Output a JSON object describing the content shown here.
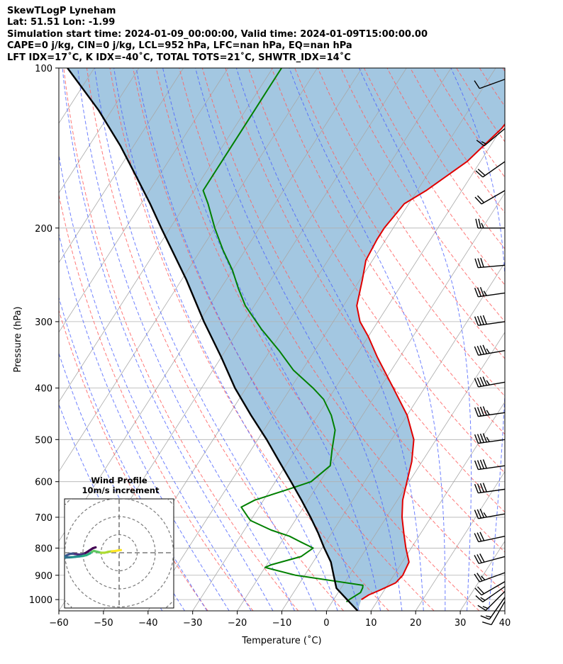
{
  "header": {
    "title": "SkewTLogP Lyneham",
    "location": "Lat: 51.51   Lon: -1.99",
    "times": "Simulation start time: 2024-01-09_00:00:00, Valid time: 2024-01-09T15:00:00.00",
    "indices1": "CAPE=0 j/kg, CIN=0 j/kg, LCL=952 hPa, LFC=nan hPa, EQ=nan hPa",
    "indices2": "LFT IDX=17˚C, K IDX=-40˚C, TOTAL TOTS=21˚C, SHWTR_IDX=14˚C"
  },
  "chart_data": {
    "type": "line",
    "title": "SkewTLogP Lyneham",
    "xlabel": "Temperature (˚C)",
    "ylabel": "Pressure (hPa)",
    "xlim": [
      -60,
      40
    ],
    "ylim": [
      1050,
      100
    ],
    "y_scale": "log",
    "x_ticks": [
      -60,
      -50,
      -40,
      -30,
      -20,
      -10,
      0,
      10,
      20,
      30,
      40
    ],
    "y_ticks": [
      100,
      200,
      300,
      400,
      500,
      600,
      700,
      800,
      900,
      1000
    ],
    "grid": true,
    "colors": {
      "temperature": "#e00000",
      "dewpoint": "#008000",
      "parcel": "#000000",
      "fill": "#7fb2d5",
      "dry_adiabat": "#ff6060",
      "moist_adiabat": "#4a60ff",
      "isotherm": "#a8a8a8"
    },
    "series": [
      {
        "key": "temperature",
        "pressure": [
          1000,
          980,
          960,
          930,
          900,
          850,
          800,
          750,
          700,
          650,
          600,
          550,
          500,
          450,
          400,
          350,
          320,
          300,
          280,
          250,
          230,
          210,
          200,
          180,
          170,
          150,
          130,
          115,
          105,
          100
        ],
        "values": [
          6.2,
          7.2,
          9.0,
          11.5,
          12.0,
          11.5,
          8.8,
          6.2,
          3.5,
          1.2,
          -0.5,
          -2.3,
          -5.0,
          -10.0,
          -17.0,
          -25.0,
          -30.0,
          -34.0,
          -37.0,
          -39.5,
          -41.5,
          -42.0,
          -42.0,
          -41.0,
          -38.0,
          -33.0,
          -30.0,
          -29.0,
          -28.5,
          -28.0
        ]
      },
      {
        "key": "dewpoint",
        "pressure": [
          1010,
          1000,
          990,
          970,
          950,
          940,
          900,
          870,
          860,
          830,
          800,
          780,
          760,
          740,
          710,
          700,
          670,
          650,
          620,
          600,
          560,
          520,
          480,
          450,
          420,
          400,
          370,
          340,
          310,
          280,
          260,
          240,
          220,
          200,
          180,
          170,
          160,
          140,
          120,
          110,
          100
        ],
        "values": [
          3.2,
          3.5,
          4.0,
          5.0,
          4.8,
          4.5,
          -12.0,
          -20.0,
          -19.0,
          -13.5,
          -12.0,
          -15.5,
          -19.0,
          -24.0,
          -30.0,
          -31.0,
          -34.0,
          -32.0,
          -26.0,
          -22.0,
          -20.0,
          -22.0,
          -24.0,
          -27.0,
          -31.0,
          -35.0,
          -42.0,
          -48.0,
          -55.0,
          -62.0,
          -66.0,
          -70.0,
          -75.0,
          -80.0,
          -85.0,
          -88.0,
          -88.0,
          -88.0,
          -88.0,
          -88.0,
          -88.0
        ]
      },
      {
        "key": "parcel",
        "pressure": [
          1050,
          1000,
          952,
          900,
          850,
          800,
          750,
          700,
          650,
          600,
          550,
          500,
          450,
          400,
          350,
          300,
          250,
          200,
          180,
          160,
          140,
          120,
          100
        ],
        "values": [
          7.0,
          3.0,
          -1.0,
          -3.5,
          -6.0,
          -9.5,
          -13.0,
          -17.0,
          -21.5,
          -26.5,
          -32.0,
          -38.0,
          -45.0,
          -52.5,
          -60.0,
          -69.0,
          -79.0,
          -92.0,
          -98.0,
          -105.0,
          -113.0,
          -123.0,
          -136.0
        ]
      }
    ],
    "wind_barbs": [
      {
        "p": 1008,
        "speed_kt": 10,
        "dir_deg": 210
      },
      {
        "p": 990,
        "speed_kt": 15,
        "dir_deg": 215
      },
      {
        "p": 965,
        "speed_kt": 15,
        "dir_deg": 225
      },
      {
        "p": 945,
        "speed_kt": 15,
        "dir_deg": 235
      },
      {
        "p": 925,
        "speed_kt": 20,
        "dir_deg": 240
      },
      {
        "p": 890,
        "speed_kt": 25,
        "dir_deg": 250
      },
      {
        "p": 830,
        "speed_kt": 30,
        "dir_deg": 255
      },
      {
        "p": 760,
        "speed_kt": 30,
        "dir_deg": 258
      },
      {
        "p": 690,
        "speed_kt": 35,
        "dir_deg": 260
      },
      {
        "p": 620,
        "speed_kt": 40,
        "dir_deg": 262
      },
      {
        "p": 560,
        "speed_kt": 40,
        "dir_deg": 262
      },
      {
        "p": 500,
        "speed_kt": 45,
        "dir_deg": 262
      },
      {
        "p": 445,
        "speed_kt": 45,
        "dir_deg": 262
      },
      {
        "p": 390,
        "speed_kt": 45,
        "dir_deg": 260
      },
      {
        "p": 340,
        "speed_kt": 45,
        "dir_deg": 260
      },
      {
        "p": 300,
        "speed_kt": 40,
        "dir_deg": 262
      },
      {
        "p": 265,
        "speed_kt": 35,
        "dir_deg": 262
      },
      {
        "p": 235,
        "speed_kt": 30,
        "dir_deg": 265
      },
      {
        "p": 200,
        "speed_kt": 25,
        "dir_deg": 270
      },
      {
        "p": 170,
        "speed_kt": 20,
        "dir_deg": 240
      },
      {
        "p": 150,
        "speed_kt": 20,
        "dir_deg": 235
      },
      {
        "p": 130,
        "speed_kt": 15,
        "dir_deg": 230
      },
      {
        "p": 105,
        "speed_kt": 10,
        "dir_deg": 250
      }
    ],
    "inset": {
      "title": "Wind Profile",
      "subtitle": "10m/s increment",
      "hodograph_uv": [
        [
          -13,
          -3
        ],
        [
          -14.5,
          -2.5
        ],
        [
          -16.5,
          -1.2
        ],
        [
          -18,
          -0.2
        ],
        [
          -19.5,
          0.6
        ],
        [
          -21,
          1
        ],
        [
          -23,
          0.9
        ],
        [
          -25.5,
          0.5
        ],
        [
          -27,
          0.6
        ],
        [
          -28.5,
          1.2
        ],
        [
          -30,
          1.9
        ],
        [
          -30.5,
          2.6
        ],
        [
          -29,
          2.6
        ],
        [
          -26.5,
          2.5
        ],
        [
          -24.5,
          2.3
        ],
        [
          -22,
          2
        ],
        [
          -20,
          1.8
        ],
        [
          -18,
          1.3
        ],
        [
          -16,
          0.3
        ],
        [
          -15,
          -0.6
        ],
        [
          -14,
          -1
        ],
        [
          -12,
          -0.5
        ],
        [
          -10,
          0
        ],
        [
          -8,
          0
        ],
        [
          -6,
          -0.5
        ],
        [
          -4,
          -0.8
        ],
        [
          -2,
          -1
        ],
        [
          -0.5,
          -1.3
        ],
        [
          1,
          -1.5
        ]
      ]
    }
  }
}
